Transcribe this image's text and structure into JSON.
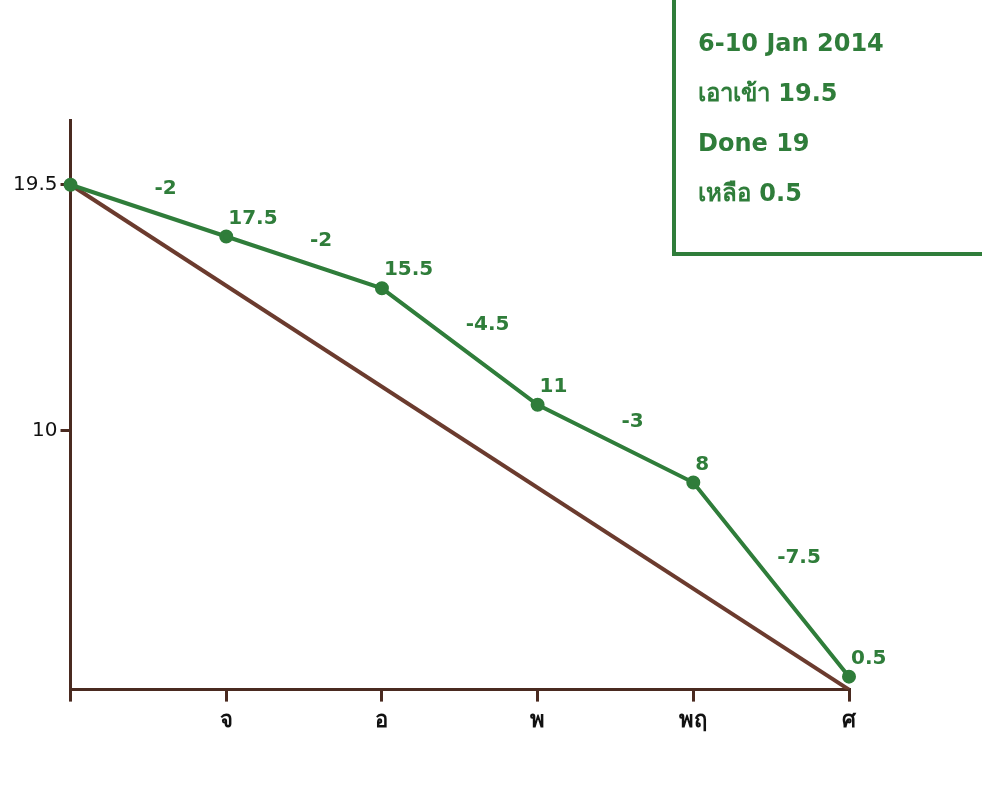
{
  "chart_data": {
    "type": "line",
    "categories": [
      null,
      "จ",
      "อ",
      "พ",
      "พฤ",
      "ศ"
    ],
    "series": [
      {
        "color": "#2f7d3a",
        "values": [
          19.5,
          17.5,
          15.5,
          11,
          8,
          0.5
        ],
        "value_labels": [
          null,
          "17.5",
          "15.5",
          "11",
          "8",
          "0.5"
        ],
        "differences": [
          -2,
          -2,
          -4.5,
          -3,
          -7.5
        ],
        "marker": "circle"
      },
      {
        "color": "#6b3b2e",
        "values": [
          19.5,
          null,
          null,
          null,
          null,
          0
        ],
        "marker": "none"
      }
    ],
    "ylim": [
      0,
      22
    ],
    "yticks": [
      10,
      19.5
    ],
    "grid": false,
    "data_labels": true,
    "annotations": [
      "6-10 Jan 2014",
      "เอาเข้า 19.5",
      "Done 19",
      "เหลือ 0.5"
    ]
  }
}
